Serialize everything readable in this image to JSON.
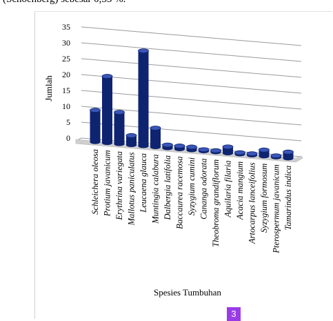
{
  "top_text": "(Schoenberg) sebesar 0,53 %.",
  "page_badge": "3",
  "chart_data": {
    "type": "bar",
    "title": "",
    "xlabel": "Spesies Tumbuhan",
    "ylabel": "Jumlah",
    "ylim": [
      0,
      35
    ],
    "yticks": [
      0,
      5,
      10,
      15,
      20,
      25,
      30,
      35
    ],
    "grid": true,
    "legend": "none",
    "categories": [
      "Schleichera oleosa",
      "Protium javanicum",
      "Erythrina variegata",
      "Mallotus paniculatus",
      "Leucaena glauca",
      "Muntingia calabura",
      "Dalbergia latifolia",
      "Baccaurea racemosa",
      "Syzygium cumini",
      "Cananga odorata",
      "Theobroma grandiflorum",
      "Aquilaria filaria",
      "Acacia mangium",
      "Artocarpus lanceifolius",
      "Syzygium formosum",
      "Pterospermum javanicum",
      "Tamarindus indica"
    ],
    "values": [
      10,
      21,
      10,
      3,
      30,
      6,
      1,
      1,
      1,
      0.5,
      0.5,
      2,
      0.5,
      0.5,
      2,
      0.5,
      2
    ],
    "colors": {
      "bar": "#0f2470",
      "bar_top": "#3a56b8",
      "grid": "#999999",
      "floor": "#cfcfcf"
    }
  }
}
